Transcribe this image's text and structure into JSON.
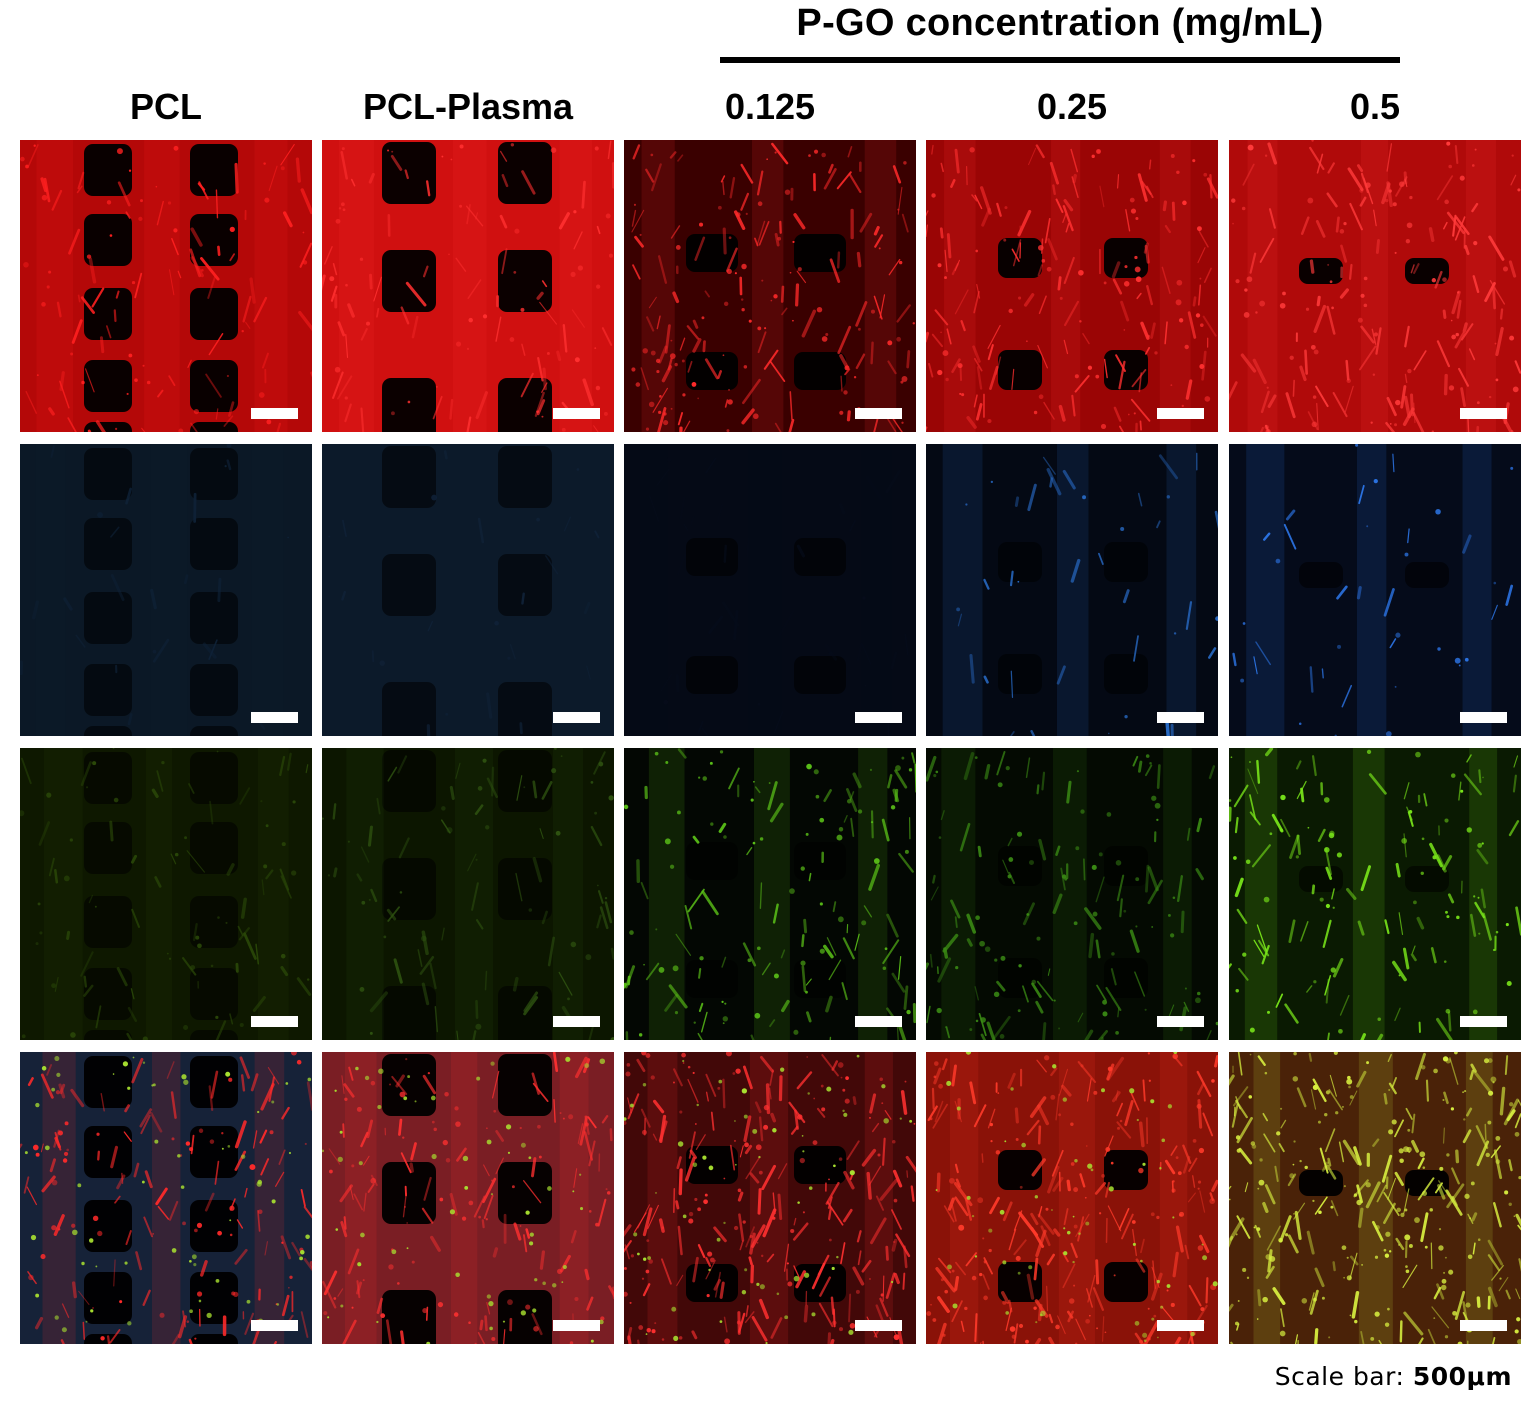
{
  "header": {
    "group_title": "P-GO concentration (mg/mL)",
    "columns": [
      "PCL",
      "PCL-Plasma",
      "0.125",
      "0.25",
      "0.5"
    ]
  },
  "rows": [
    {
      "channel": "red",
      "color": "#e81010"
    },
    {
      "channel": "blue",
      "color": "#1c6fe0"
    },
    {
      "channel": "green",
      "color": "#8cf01c"
    },
    {
      "channel": "merged",
      "color": "#e82010"
    }
  ],
  "footer": {
    "scale_label": "Scale bar:",
    "scale_value": "500μm"
  }
}
